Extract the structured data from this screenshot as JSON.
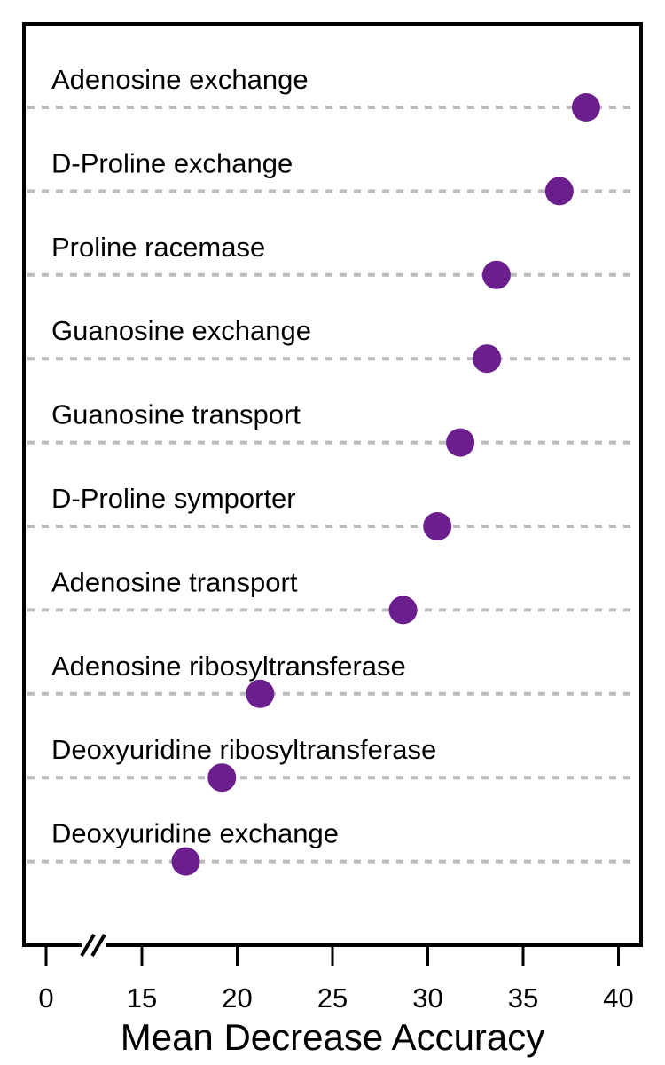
{
  "chart_data": {
    "type": "scatter",
    "style": "dot-plot",
    "categories": [
      "Adenosine exchange",
      "D-Proline exchange",
      "Proline racemase",
      "Guanosine exchange",
      "Guanosine transport",
      "D-Proline symporter",
      "Adenosine transport",
      "Adenosine ribosyltransferase",
      "Deoxyuridine ribosyltransferase",
      "Deoxyuridine exchange"
    ],
    "values": [
      38.3,
      36.9,
      33.6,
      33.1,
      31.7,
      30.5,
      28.7,
      21.2,
      19.2,
      17.3
    ],
    "xlabel": "Mean Decrease Accuracy",
    "ylabel": "",
    "xticks": [
      0,
      15,
      20,
      25,
      30,
      35,
      40
    ],
    "xlim": [
      10,
      41.5
    ],
    "axis_break": "between 0 and 15",
    "grid": "dashed horizontal guide per category",
    "legend": "none",
    "marker_color": "#6a1f8c",
    "guide_color": "#bdbdbd"
  }
}
